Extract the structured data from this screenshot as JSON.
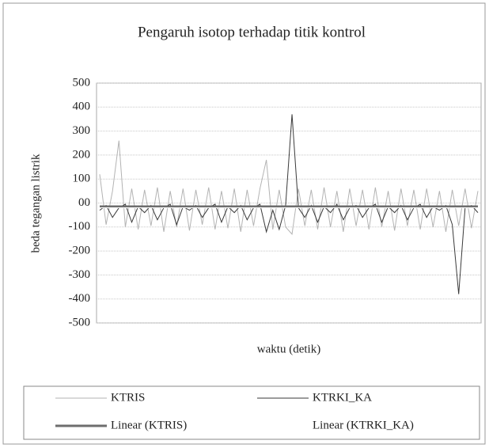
{
  "chart_data": {
    "type": "line",
    "title": "Pengaruh isotop terhadap titik kontrol",
    "x_label": "waktu (detik)",
    "y_label": "beda tegangan listrik",
    "categories": [
      null,
      null,
      null,
      null,
      null,
      null,
      null,
      null,
      null,
      null,
      null,
      null,
      null,
      null,
      null,
      null,
      null,
      null,
      null,
      null,
      null,
      null,
      null,
      null,
      null,
      null,
      null,
      null,
      null,
      null,
      null,
      null,
      null,
      null,
      null,
      null,
      null,
      null,
      null,
      null,
      null,
      null,
      null,
      null,
      null,
      null,
      null,
      null,
      null,
      null,
      null,
      null,
      null,
      null,
      null,
      null,
      null,
      null,
      null,
      null
    ],
    "ylim": [
      -500,
      500
    ],
    "yticks": [
      500,
      400,
      300,
      200,
      100,
      {
        "value": 0,
        "label": "00"
      },
      -100,
      -200,
      -300,
      -400,
      -500
    ],
    "grid": true,
    "series": [
      {
        "name": "KTRIS",
        "color": "#b3b3b3",
        "width": 1,
        "values": [
          120,
          -90,
          50,
          260,
          -100,
          60,
          -110,
          55,
          -95,
          65,
          -120,
          50,
          -100,
          60,
          -115,
          55,
          -90,
          65,
          -110,
          50,
          -105,
          60,
          -120,
          55,
          -95,
          60,
          180,
          -110,
          55,
          -100,
          -130,
          60,
          -95,
          55,
          -110,
          65,
          -100,
          50,
          -120,
          60,
          -95,
          55,
          -110,
          65,
          -100,
          50,
          -115,
          60,
          -95,
          55,
          -110,
          60,
          -100,
          50,
          -120,
          55,
          -95,
          60,
          -105,
          50
        ]
      },
      {
        "name": "KTRKI_KA",
        "color": "#3a3a3a",
        "width": 1,
        "values": [
          -30,
          -10,
          -60,
          -20,
          -5,
          -80,
          -15,
          -40,
          -10,
          -70,
          -20,
          -5,
          -90,
          -15,
          -30,
          -10,
          -60,
          -20,
          -5,
          -80,
          -15,
          -40,
          -10,
          -70,
          -20,
          -5,
          -120,
          -30,
          -110,
          -10,
          370,
          -20,
          -60,
          -10,
          -80,
          -15,
          -40,
          -5,
          -70,
          -20,
          -10,
          -60,
          -20,
          -5,
          -80,
          -15,
          -40,
          -10,
          -70,
          -20,
          -5,
          -60,
          -15,
          -30,
          -10,
          -90,
          -380,
          -20,
          -10,
          -40
        ]
      },
      {
        "name": "Linear (KTRIS)",
        "color": "#6e6e6e",
        "width": 3,
        "values": [
          -15,
          -15,
          -15,
          -15,
          -15,
          -15,
          -15,
          -15,
          -15,
          -15,
          -15,
          -15,
          -15,
          -15,
          -15,
          -15,
          -15,
          -15,
          -15,
          -15,
          -15,
          -15,
          -15,
          -15,
          -15,
          -15,
          -15,
          -15,
          -15,
          -15,
          -15,
          -15,
          -15,
          -15,
          -15,
          -15,
          -15,
          -15,
          -15,
          -15,
          -15,
          -15,
          -15,
          -15,
          -15,
          -15,
          -15,
          -15,
          -15,
          -15,
          -15,
          -15,
          -15,
          -15,
          -15,
          -15,
          -15,
          -15,
          -15,
          -15
        ]
      },
      {
        "name": "Linear (KTRKI_KA)",
        "color": "#ffffff",
        "width": 1,
        "values": [
          -20,
          -20,
          -20,
          -20,
          -20,
          -20,
          -20,
          -20,
          -20,
          -20,
          -20,
          -20,
          -20,
          -20,
          -20,
          -20,
          -20,
          -20,
          -20,
          -20,
          -20,
          -20,
          -20,
          -20,
          -20,
          -20,
          -20,
          -20,
          -20,
          -20,
          -20,
          -20,
          -20,
          -20,
          -20,
          -20,
          -20,
          -20,
          -20,
          -20,
          -20,
          -20,
          -20,
          -20,
          -20,
          -20,
          -20,
          -20,
          -20,
          -20,
          -20,
          -20,
          -20,
          -20,
          -20,
          -20,
          -20,
          -20,
          -20,
          -20
        ]
      }
    ]
  }
}
